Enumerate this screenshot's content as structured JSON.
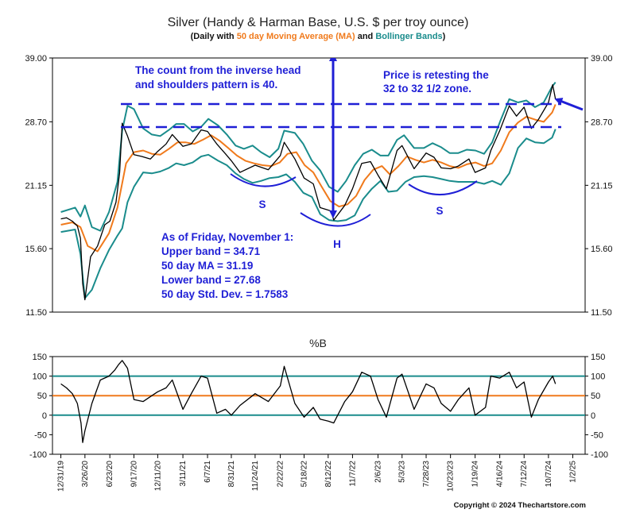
{
  "title": "Silver (Handy & Harman Base, U.S. $ per troy ounce)",
  "subtitle": {
    "prefix": "(Daily with ",
    "ma": "50 day Moving Average (MA)",
    "and": " and ",
    "bb": "Bollinger Bands",
    "suffix": ")"
  },
  "colors": {
    "price": "#000000",
    "ma": "#f07a1c",
    "bands": "#1a8c8c",
    "annotation": "#1f1fd6",
    "axis": "#000000"
  },
  "copyright": "Copyright © 2024 Thechartstore.com",
  "chart_data": [
    {
      "type": "line",
      "name": "price-panel",
      "y_ticks": [
        "39.00",
        "28.70",
        "21.15",
        "15.60",
        "11.50"
      ],
      "y_tick_values": [
        39.0,
        28.7,
        21.15,
        15.6,
        11.5
      ],
      "ylim": [
        11.5,
        39.0
      ],
      "y_scale": "log",
      "x_range": [
        "2019-12-01",
        "2025-02-15"
      ],
      "series": [
        {
          "name": "Price",
          "x": [
            "2019-12-31",
            "2020-01-20",
            "2020-02-10",
            "2020-02-28",
            "2020-03-10",
            "2020-03-18",
            "2020-03-26",
            "2020-04-15",
            "2020-05-10",
            "2020-06-05",
            "2020-06-23",
            "2020-07-15",
            "2020-07-28",
            "2020-08-06",
            "2020-08-25",
            "2020-09-17",
            "2020-10-15",
            "2020-11-15",
            "2020-12-11",
            "2021-01-10",
            "2021-02-01",
            "2021-03-11",
            "2021-04-10",
            "2021-05-15",
            "2021-06-07",
            "2021-07-10",
            "2021-08-10",
            "2021-08-31",
            "2021-10-01",
            "2021-11-24",
            "2022-01-10",
            "2022-02-22",
            "2022-03-08",
            "2022-04-15",
            "2022-05-18",
            "2022-06-20",
            "2022-07-14",
            "2022-08-22",
            "2022-09-01",
            "2022-10-10",
            "2022-11-07",
            "2022-12-10",
            "2023-01-10",
            "2023-02-06",
            "2023-03-08",
            "2023-04-15",
            "2023-05-03",
            "2023-06-15",
            "2023-07-28",
            "2023-08-25",
            "2023-09-20",
            "2023-10-23",
            "2023-11-20",
            "2023-12-28",
            "2024-01-19",
            "2024-02-25",
            "2024-03-15",
            "2024-04-16",
            "2024-05-20",
            "2024-06-15",
            "2024-07-12",
            "2024-08-07",
            "2024-09-01",
            "2024-10-07",
            "2024-10-22",
            "2024-11-01"
          ],
          "values": [
            18.0,
            18.1,
            17.8,
            17.4,
            16.4,
            13.2,
            12.2,
            15.0,
            15.8,
            17.5,
            17.8,
            19.5,
            22.5,
            28.5,
            26.8,
            24.5,
            24.3,
            24.0,
            24.9,
            25.8,
            27.0,
            25.5,
            25.8,
            27.6,
            27.4,
            25.8,
            24.6,
            23.8,
            22.5,
            23.3,
            22.8,
            24.4,
            26.0,
            24.0,
            21.9,
            21.3,
            19.0,
            18.7,
            17.9,
            19.2,
            20.8,
            23.5,
            23.7,
            22.2,
            20.8,
            25.0,
            25.6,
            22.9,
            24.7,
            24.2,
            23.0,
            22.9,
            23.2,
            24.0,
            22.5,
            23.0,
            25.0,
            27.5,
            31.0,
            29.5,
            30.8,
            27.8,
            29.0,
            31.5,
            34.3,
            32.0
          ]
        },
        {
          "name": "50 day Moving Average (MA)",
          "x": [
            "2019-12-31",
            "2020-02-10",
            "2020-03-10",
            "2020-04-05",
            "2020-05-10",
            "2020-06-20",
            "2020-07-20",
            "2020-08-20",
            "2020-09-17",
            "2020-10-20",
            "2020-11-20",
            "2020-12-20",
            "2021-01-20",
            "2021-02-20",
            "2021-03-20",
            "2021-04-20",
            "2021-05-20",
            "2021-06-20",
            "2021-07-20",
            "2021-08-20",
            "2021-09-20",
            "2021-10-20",
            "2021-11-20",
            "2021-12-20",
            "2022-01-20",
            "2022-02-20",
            "2022-03-20",
            "2022-04-20",
            "2022-05-20",
            "2022-06-20",
            "2022-07-20",
            "2022-08-20",
            "2022-09-20",
            "2022-10-20",
            "2022-11-20",
            "2022-12-20",
            "2023-01-20",
            "2023-02-20",
            "2023-03-20",
            "2023-04-20",
            "2023-05-20",
            "2023-06-20",
            "2023-07-20",
            "2023-08-20",
            "2023-09-20",
            "2023-10-20",
            "2023-11-20",
            "2023-12-20",
            "2024-01-20",
            "2024-02-20",
            "2024-03-20",
            "2024-04-20",
            "2024-05-20",
            "2024-06-20",
            "2024-07-20",
            "2024-08-20",
            "2024-09-20",
            "2024-10-20",
            "2024-11-01"
          ],
          "values": [
            17.5,
            17.7,
            17.3,
            15.8,
            15.4,
            16.8,
            19.0,
            23.5,
            24.8,
            25.0,
            24.6,
            24.5,
            25.2,
            26.0,
            26.0,
            25.8,
            26.3,
            26.9,
            26.2,
            25.3,
            24.4,
            23.8,
            23.5,
            23.3,
            23.2,
            23.6,
            24.6,
            24.8,
            23.3,
            22.5,
            21.0,
            19.6,
            19.1,
            19.3,
            20.1,
            21.7,
            22.8,
            23.2,
            22.3,
            23.2,
            24.3,
            23.9,
            23.6,
            23.9,
            23.6,
            23.2,
            23.0,
            23.4,
            23.6,
            23.2,
            23.5,
            25.0,
            27.3,
            28.6,
            29.4,
            29.0,
            28.7,
            30.0,
            31.2
          ]
        },
        {
          "name": "Upper Bollinger Band",
          "x": [
            "2019-12-31",
            "2020-02-20",
            "2020-03-10",
            "2020-03-26",
            "2020-04-20",
            "2020-05-20",
            "2020-06-20",
            "2020-07-20",
            "2020-08-06",
            "2020-08-25",
            "2020-09-17",
            "2020-10-20",
            "2020-11-20",
            "2020-12-20",
            "2021-01-20",
            "2021-02-15",
            "2021-03-15",
            "2021-04-15",
            "2021-05-15",
            "2021-06-10",
            "2021-07-15",
            "2021-08-15",
            "2021-09-15",
            "2021-10-15",
            "2021-11-15",
            "2021-12-15",
            "2022-01-15",
            "2022-02-15",
            "2022-03-08",
            "2022-04-15",
            "2022-05-15",
            "2022-06-15",
            "2022-07-15",
            "2022-08-15",
            "2022-09-15",
            "2022-10-15",
            "2022-11-15",
            "2022-12-15",
            "2023-01-15",
            "2023-02-15",
            "2023-03-15",
            "2023-04-15",
            "2023-05-10",
            "2023-06-15",
            "2023-07-20",
            "2023-08-20",
            "2023-09-20",
            "2023-10-20",
            "2023-11-20",
            "2023-12-20",
            "2024-01-20",
            "2024-02-20",
            "2024-03-20",
            "2024-04-20",
            "2024-05-20",
            "2024-06-20",
            "2024-07-20",
            "2024-08-20",
            "2024-09-20",
            "2024-10-20",
            "2024-11-01"
          ],
          "values": [
            18.6,
            19.0,
            18.2,
            19.2,
            17.3,
            17.0,
            18.6,
            21.5,
            27.5,
            31.0,
            30.5,
            27.8,
            27.0,
            26.8,
            27.6,
            28.4,
            28.4,
            27.4,
            28.0,
            29.1,
            28.2,
            27.0,
            25.6,
            25.2,
            25.6,
            24.8,
            24.2,
            25.2,
            27.5,
            27.2,
            25.8,
            23.8,
            22.7,
            21.0,
            20.5,
            21.6,
            23.3,
            24.6,
            25.1,
            24.4,
            24.4,
            26.3,
            26.9,
            25.3,
            25.3,
            25.9,
            25.4,
            24.7,
            24.7,
            25.1,
            25.0,
            24.6,
            26.0,
            29.0,
            32.0,
            31.5,
            31.8,
            30.8,
            31.5,
            34.0,
            34.7
          ]
        },
        {
          "name": "Lower Bollinger Band",
          "x": [
            "2019-12-31",
            "2020-02-20",
            "2020-03-10",
            "2020-03-26",
            "2020-04-20",
            "2020-05-20",
            "2020-06-20",
            "2020-07-20",
            "2020-08-06",
            "2020-08-25",
            "2020-09-17",
            "2020-10-20",
            "2020-11-20",
            "2020-12-20",
            "2021-01-20",
            "2021-02-15",
            "2021-03-15",
            "2021-04-15",
            "2021-05-15",
            "2021-06-10",
            "2021-07-15",
            "2021-08-15",
            "2021-09-15",
            "2021-10-15",
            "2021-11-15",
            "2021-12-15",
            "2022-01-15",
            "2022-02-15",
            "2022-03-15",
            "2022-04-15",
            "2022-05-15",
            "2022-06-15",
            "2022-07-15",
            "2022-08-15",
            "2022-09-15",
            "2022-10-15",
            "2022-11-15",
            "2022-12-15",
            "2023-01-15",
            "2023-02-15",
            "2023-03-15",
            "2023-04-15",
            "2023-05-15",
            "2023-06-15",
            "2023-07-20",
            "2023-08-20",
            "2023-09-20",
            "2023-10-20",
            "2023-11-20",
            "2023-12-20",
            "2024-01-20",
            "2024-02-20",
            "2024-03-20",
            "2024-04-20",
            "2024-05-20",
            "2024-06-20",
            "2024-07-20",
            "2024-08-20",
            "2024-09-20",
            "2024-10-20",
            "2024-11-01"
          ],
          "values": [
            16.9,
            17.1,
            15.2,
            12.3,
            12.8,
            14.2,
            15.5,
            16.6,
            17.2,
            19.5,
            21.0,
            22.5,
            22.4,
            22.6,
            23.0,
            23.5,
            23.3,
            23.6,
            24.3,
            24.5,
            23.8,
            23.3,
            22.4,
            21.8,
            21.4,
            21.6,
            21.9,
            22.0,
            22.3,
            21.5,
            20.4,
            20.0,
            18.4,
            17.9,
            17.8,
            17.9,
            18.3,
            19.8,
            20.8,
            21.6,
            20.5,
            20.6,
            21.5,
            22.0,
            22.1,
            22.0,
            21.8,
            21.6,
            21.5,
            21.5,
            21.5,
            21.3,
            21.6,
            21.2,
            22.4,
            25.3,
            26.5,
            26.0,
            25.9,
            26.6,
            27.7
          ]
        }
      ],
      "horizontal_lines": [
        32.0,
        28.2
      ],
      "pattern_labels": [
        "S",
        "H",
        "S"
      ],
      "annotations": [
        "The count from the inverse head",
        "and shoulders pattern is 40.",
        "Price is retesting the",
        "32 to 32 1/2 zone.",
        "As of Friday, November 1:",
        "Upper band = 34.71",
        "50 day MA = 31.19",
        "Lower band = 27.68",
        "50 day Std. Dev. = 1.7583"
      ]
    },
    {
      "type": "line",
      "name": "percent-b-panel",
      "title": "%B",
      "y_ticks": [
        "150",
        "100",
        "50",
        "0",
        "-50",
        "-100"
      ],
      "y_tick_values": [
        150,
        100,
        50,
        0,
        -50,
        -100
      ],
      "ylim": [
        -100,
        150
      ],
      "reference_lines": [
        100,
        50,
        0
      ],
      "x_range": [
        "2019-12-01",
        "2025-02-15"
      ],
      "x_tick_labels": [
        "12/31/19",
        "3/26/20",
        "6/23/20",
        "9/17/20",
        "12/11/20",
        "3/11/21",
        "6/7/21",
        "8/31/21",
        "11/24/21",
        "2/22/22",
        "5/18/22",
        "8/12/22",
        "11/7/22",
        "2/6/23",
        "5/3/23",
        "7/28/23",
        "10/23/23",
        "1/19/24",
        "4/16/24",
        "7/12/24",
        "10/7/24",
        "1/2/25"
      ],
      "x_tick_dates": [
        "2019-12-31",
        "2020-03-26",
        "2020-06-23",
        "2020-09-17",
        "2020-12-11",
        "2021-03-11",
        "2021-06-07",
        "2021-08-31",
        "2021-11-24",
        "2022-02-22",
        "2022-05-18",
        "2022-08-12",
        "2022-11-07",
        "2023-02-06",
        "2023-05-03",
        "2023-07-28",
        "2023-10-23",
        "2024-01-19",
        "2024-04-16",
        "2024-07-12",
        "2024-10-07",
        "2025-01-02"
      ],
      "series": [
        {
          "name": "%B",
          "x": [
            "2019-12-31",
            "2020-01-20",
            "2020-02-10",
            "2020-02-28",
            "2020-03-12",
            "2020-03-18",
            "2020-03-26",
            "2020-04-20",
            "2020-05-20",
            "2020-06-20",
            "2020-07-10",
            "2020-07-25",
            "2020-08-06",
            "2020-08-25",
            "2020-09-17",
            "2020-10-20",
            "2020-11-20",
            "2020-12-11",
            "2021-01-10",
            "2021-02-01",
            "2021-03-11",
            "2021-04-10",
            "2021-05-15",
            "2021-06-07",
            "2021-07-10",
            "2021-08-10",
            "2021-08-31",
            "2021-10-01",
            "2021-11-24",
            "2022-01-10",
            "2022-02-22",
            "2022-03-08",
            "2022-04-15",
            "2022-05-18",
            "2022-06-20",
            "2022-07-14",
            "2022-08-12",
            "2022-09-01",
            "2022-10-10",
            "2022-11-07",
            "2022-12-10",
            "2023-01-10",
            "2023-02-06",
            "2023-03-08",
            "2023-04-15",
            "2023-05-03",
            "2023-06-15",
            "2023-07-28",
            "2023-08-25",
            "2023-09-20",
            "2023-10-23",
            "2023-11-20",
            "2023-12-28",
            "2024-01-19",
            "2024-02-25",
            "2024-03-15",
            "2024-04-16",
            "2024-05-20",
            "2024-06-15",
            "2024-07-12",
            "2024-08-07",
            "2024-09-01",
            "2024-10-07",
            "2024-10-22",
            "2024-11-01"
          ],
          "values": [
            80,
            70,
            55,
            30,
            -20,
            -70,
            -40,
            30,
            90,
            100,
            115,
            130,
            140,
            120,
            40,
            35,
            50,
            60,
            70,
            90,
            15,
            55,
            100,
            95,
            5,
            15,
            0,
            25,
            55,
            35,
            75,
            125,
            30,
            -5,
            20,
            -10,
            -15,
            -20,
            35,
            60,
            110,
            100,
            40,
            -5,
            95,
            105,
            15,
            80,
            70,
            30,
            10,
            40,
            70,
            0,
            20,
            100,
            95,
            110,
            70,
            85,
            -5,
            40,
            85,
            100,
            80
          ]
        }
      ]
    }
  ]
}
